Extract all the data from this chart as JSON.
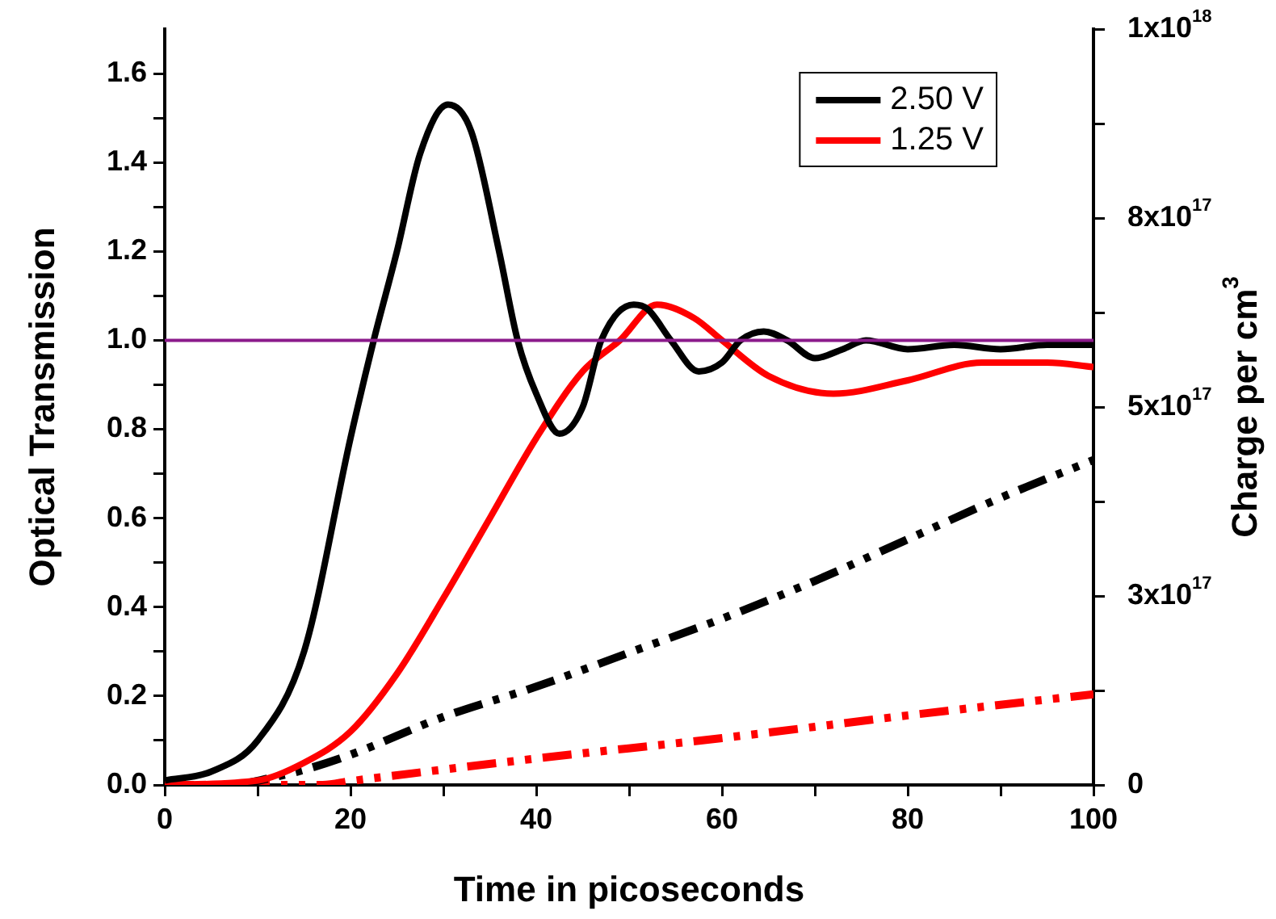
{
  "chart_data": {
    "type": "line",
    "xlabel": "Time in picoseconds",
    "ylabel": "Optical Transmission",
    "y2label": "Charge per cm$^{3}$",
    "xlim": [
      0,
      100
    ],
    "xticks": [
      0,
      {
        "value": 10,
        "label": null
      },
      20,
      {
        "value": 30,
        "label": null
      },
      40,
      {
        "value": 50,
        "label": null
      },
      60,
      {
        "value": 70,
        "label": null
      },
      80,
      {
        "value": 90,
        "label": null
      },
      100
    ],
    "ylim": [
      0,
      1.7
    ],
    "yticks": [
      {
        "value": 0,
        "label": "0.0"
      },
      {
        "value": 0.1,
        "label": null
      },
      {
        "value": 0.2,
        "label": "0.2"
      },
      {
        "value": 0.3,
        "label": null
      },
      {
        "value": 0.4,
        "label": "0.4"
      },
      {
        "value": 0.5,
        "label": null
      },
      {
        "value": 0.6,
        "label": "0.6"
      },
      {
        "value": 0.7,
        "label": null
      },
      {
        "value": 0.8,
        "label": "0.8"
      },
      {
        "value": 0.9,
        "label": null
      },
      {
        "value": 1,
        "label": "1.0"
      },
      {
        "value": 1.1,
        "label": null
      },
      {
        "value": 1.2,
        "label": "1.2"
      },
      {
        "value": 1.3,
        "label": null
      },
      {
        "value": 1.4,
        "label": "1.4"
      },
      {
        "value": 1.5,
        "label": null
      },
      {
        "value": 1.6,
        "label": "1.6"
      }
    ],
    "y2lim": [
      0,
      1e+18
    ],
    "y2ticks": [
      0,
      {
        "value": 1.25e+17,
        "label": null
      },
      {
        "value": 2.5e+17,
        "label": "3x10$^{17}$"
      },
      {
        "value": 3.75e+17,
        "label": null
      },
      {
        "value": 5e+17,
        "label": "5x10$^{17}$"
      },
      {
        "value": 6.25e+17,
        "label": null
      },
      {
        "value": 7.5e+17,
        "label": "8x10$^{17}$"
      },
      {
        "value": 8.75e+17,
        "label": null
      },
      {
        "value": 1e+18,
        "label": "1x10$^{18}$"
      }
    ],
    "marker": "none",
    "legend": "top right",
    "ref_lines": [
      {
        "axis": "y",
        "value": 1,
        "color": "#8b1a8b"
      }
    ],
    "series": [
      {
        "name": "2.50 V",
        "color": "#000000",
        "line_style": "solid",
        "x": [
          0,
          5,
          10,
          15,
          20,
          22.5,
          25,
          27.5,
          30.5,
          33,
          36,
          38,
          40,
          42.5,
          45,
          47,
          50.5,
          52,
          54.5,
          57.5,
          60,
          62,
          64.5,
          67,
          70,
          73,
          75.5,
          80,
          85,
          90,
          95,
          100
        ],
        "values": [
          0.01,
          0.03,
          0.1,
          0.3,
          0.78,
          1.0,
          1.2,
          1.42,
          1.53,
          1.47,
          1.2,
          1.0,
          0.88,
          0.79,
          0.85,
          1.0,
          1.08,
          1.07,
          1.0,
          0.93,
          0.95,
          1.0,
          1.02,
          1.0,
          0.96,
          0.98,
          1.0,
          0.98,
          0.99,
          0.98,
          0.99,
          0.99
        ]
      },
      {
        "name": "1.25 V",
        "color": "#ff0000",
        "line_style": "solid",
        "x": [
          0,
          10,
          15,
          20,
          25,
          30,
          35,
          40,
          45,
          49,
          53,
          57,
          60,
          65,
          72,
          80,
          88,
          95,
          100
        ],
        "values": [
          0,
          0.01,
          0.05,
          0.12,
          0.25,
          0.42,
          0.6,
          0.78,
          0.93,
          1.0,
          1.08,
          1.05,
          1.0,
          0.92,
          0.88,
          0.91,
          0.95,
          0.95,
          0.94
        ]
      },
      {
        "color": "#000000",
        "line_style": "dashed",
        "axis": "y2",
        "x": [
          8,
          15,
          20,
          30,
          40,
          50,
          60,
          70,
          80,
          90,
          100
        ],
        "values": [
          0,
          2e+16,
          4e+16,
          9e+16,
          1.3e+17,
          1.75e+17,
          2.2e+17,
          2.7e+17,
          3.25e+17,
          3.8e+17,
          4.3e+17
        ]
      },
      {
        "color": "#ff0000",
        "line_style": "dashed",
        "axis": "y2",
        "x": [
          0,
          17,
          20,
          40,
          60,
          80,
          100
        ],
        "values": [
          0,
          0,
          5000000000000000.0,
          3.5e+16,
          6.2e+16,
          9.2e+16,
          1.2e+17
        ]
      }
    ]
  }
}
